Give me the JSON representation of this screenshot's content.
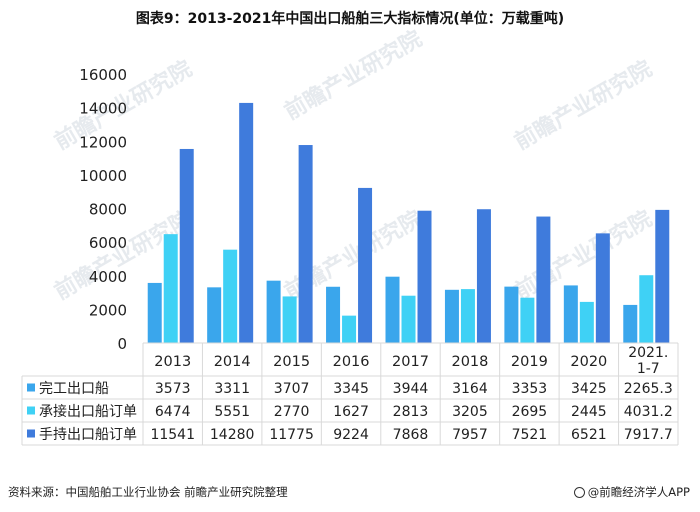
{
  "title": "图表9：2013-2021年中国出口船舶三大指标情况(单位：万载重吨)",
  "source_note": "资料来源：中国船舶工业行业协会 前瞻产业研究院整理",
  "brand": "@前瞻经济学人APP",
  "watermark": "前瞻产业研究院",
  "colors": {
    "completed": "#3aa6ec",
    "accepted": "#3fd1f5",
    "holding": "#3f7bdc",
    "grid": "#d9d9d9",
    "axis_text": "#222222"
  },
  "chart_data": {
    "type": "bar",
    "title": "图表9：2013-2021年中国出口船舶三大指标情况(单位：万载重吨)",
    "categories": [
      "2013",
      "2014",
      "2015",
      "2016",
      "2017",
      "2018",
      "2019",
      "2020",
      "2021.1-7"
    ],
    "category_labels": [
      [
        "2013"
      ],
      [
        "2014"
      ],
      [
        "2015"
      ],
      [
        "2016"
      ],
      [
        "2017"
      ],
      [
        "2018"
      ],
      [
        "2019"
      ],
      [
        "2020"
      ],
      [
        "2021.",
        "1-7"
      ]
    ],
    "series": [
      {
        "name": "完工出口船",
        "color_key": "completed",
        "values": [
          3573,
          3311,
          3707,
          3345,
          3944,
          3164,
          3353,
          3425,
          2265.3
        ],
        "labels": [
          "3573",
          "3311",
          "3707",
          "3345",
          "3944",
          "3164",
          "3353",
          "3425",
          "2265.3"
        ]
      },
      {
        "name": "承接出口船订单",
        "color_key": "accepted",
        "values": [
          6474,
          5551,
          2770,
          1627,
          2813,
          3205,
          2695,
          2445,
          4031.2
        ],
        "labels": [
          "6474",
          "5551",
          "2770",
          "1627",
          "2813",
          "3205",
          "2695",
          "2445",
          "4031.2"
        ]
      },
      {
        "name": "手持出口船订单",
        "color_key": "holding",
        "values": [
          11541,
          14280,
          11775,
          9224,
          7868,
          7957,
          7521,
          6521,
          7917.7
        ],
        "labels": [
          "11541",
          "14280",
          "11775",
          "9224",
          "7868",
          "7957",
          "7521",
          "6521",
          "7917.7"
        ]
      }
    ],
    "yticks": [
      "0",
      "2000",
      "4000",
      "6000",
      "8000",
      "10000",
      "12000",
      "14000",
      "16000"
    ],
    "ylim": [
      0,
      16000
    ],
    "xlabel": "",
    "ylabel": "",
    "grid": false,
    "legend": "data-table-rows"
  }
}
